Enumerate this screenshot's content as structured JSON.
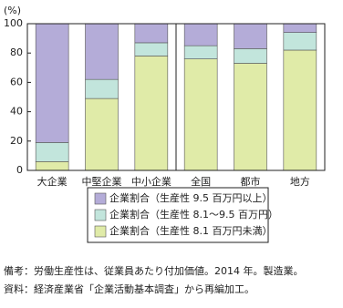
{
  "chart_data": {
    "type": "stacked-bar",
    "y_label": "(%)",
    "categories": [
      "大企業",
      "中堅企業",
      "中小企業",
      "全国",
      "都市",
      "地方"
    ],
    "series": [
      {
        "name": "企業割合（生産性 8.1 百万円未満）",
        "color": "#e0eba8",
        "values": [
          6,
          49,
          78,
          76,
          73,
          82
        ]
      },
      {
        "name": "企業割合（生産性 8.1〜9.5 百万円）",
        "color": "#c2e5dc",
        "values": [
          13,
          13,
          9,
          9,
          10,
          12
        ]
      },
      {
        "name": "企業割合（生産性 9.5 百万円以上）",
        "color": "#b4acd8",
        "values": [
          81,
          38,
          13,
          15,
          17,
          6
        ]
      }
    ],
    "ylim": [
      0,
      100
    ],
    "yticks": [
      0,
      20,
      40,
      60,
      80,
      100
    ]
  },
  "notes": [
    "備考：労働生産性は、従業員あたり付加価値。2014 年。製造業。",
    "資料：経済産業省「企業活動基本調査」から再編加工。"
  ]
}
